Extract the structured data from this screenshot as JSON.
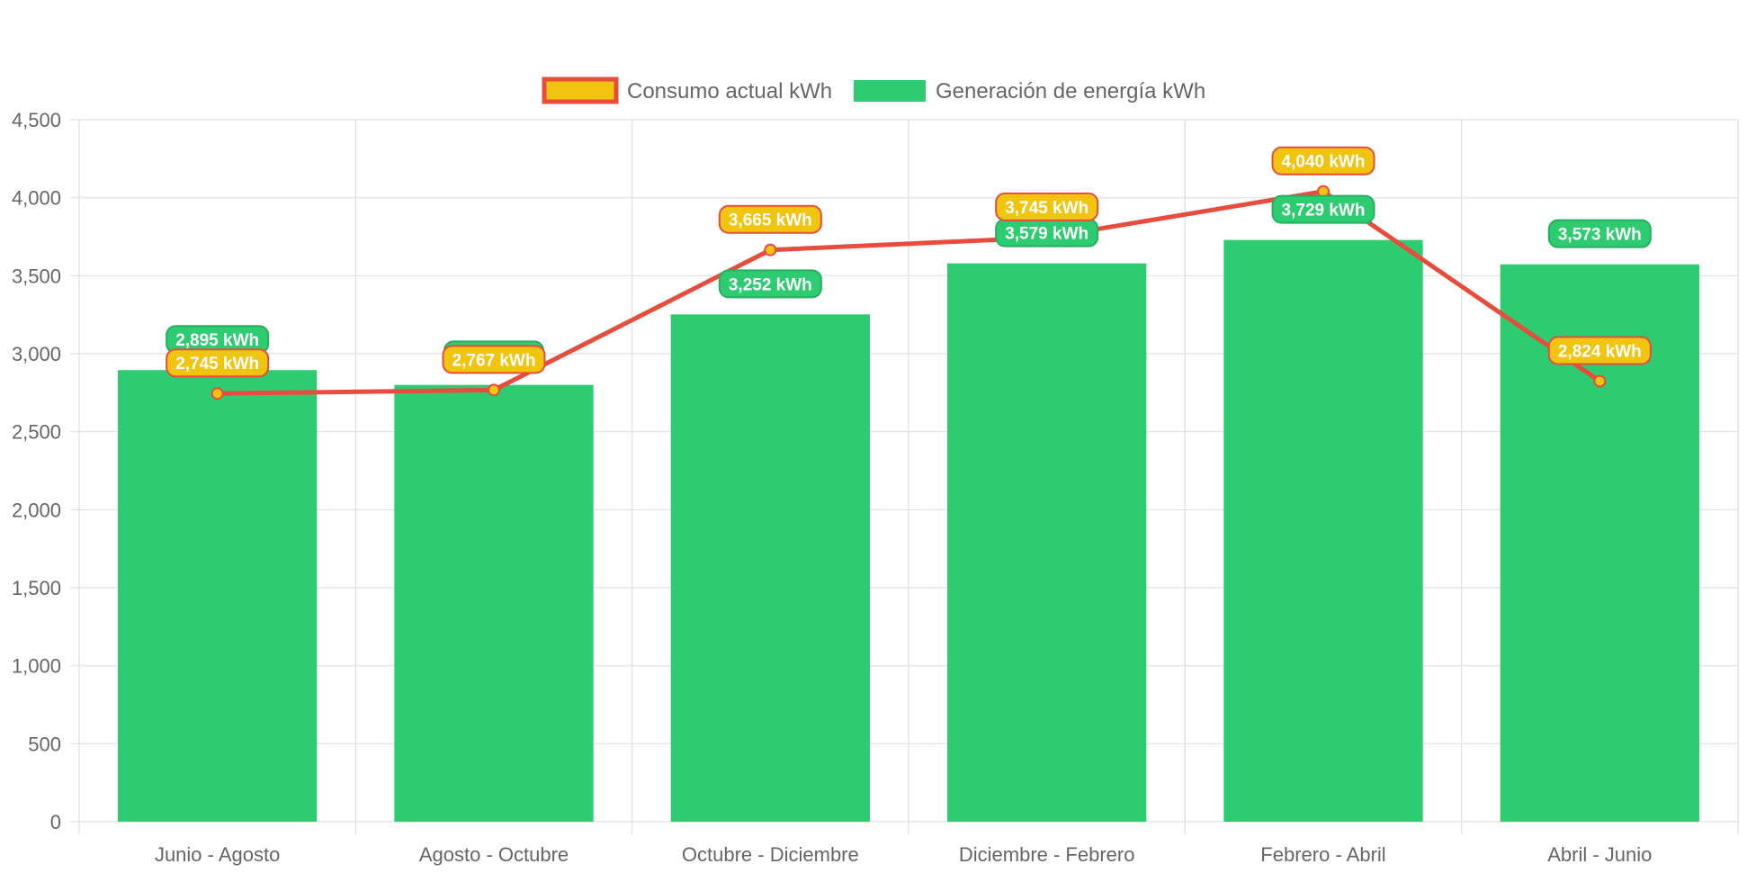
{
  "chart_data": {
    "type": "bar",
    "categories": [
      "Junio - Agosto",
      "Agosto - Octubre",
      "Octubre - Diciembre",
      "Diciembre - Febrero",
      "Febrero - Abril",
      "Abril - Junio"
    ],
    "series": [
      {
        "name": "Consumo actual kWh",
        "type": "line",
        "values": [
          2745,
          2767,
          3665,
          3745,
          4040,
          2824
        ],
        "labels": [
          "2,745 kWh",
          "2,767 kWh",
          "3,665 kWh",
          "3,745 kWh",
          "4,040 kWh",
          "2,824 kWh"
        ],
        "color": "#e74c3c",
        "fill_color": "#f1c40f"
      },
      {
        "name": "Generación de energía kWh",
        "type": "bar",
        "values": [
          2895,
          2800,
          3252,
          3579,
          3729,
          3573
        ],
        "labels": [
          "2,895 kWh",
          "",
          "3,252 kWh",
          "3,579 kWh",
          "3,729 kWh",
          "3,573 kWh"
        ],
        "color": "#2ecc71"
      }
    ],
    "ylim": [
      0,
      4500
    ],
    "yticks": [
      0,
      500,
      1000,
      1500,
      2000,
      2500,
      3000,
      3500,
      4000,
      4500
    ],
    "ytick_labels": [
      "0",
      "500",
      "1,000",
      "1,500",
      "2,000",
      "2,500",
      "3,000",
      "3,500",
      "4,000",
      "4,500"
    ],
    "grid": true,
    "legend_position": "top"
  }
}
